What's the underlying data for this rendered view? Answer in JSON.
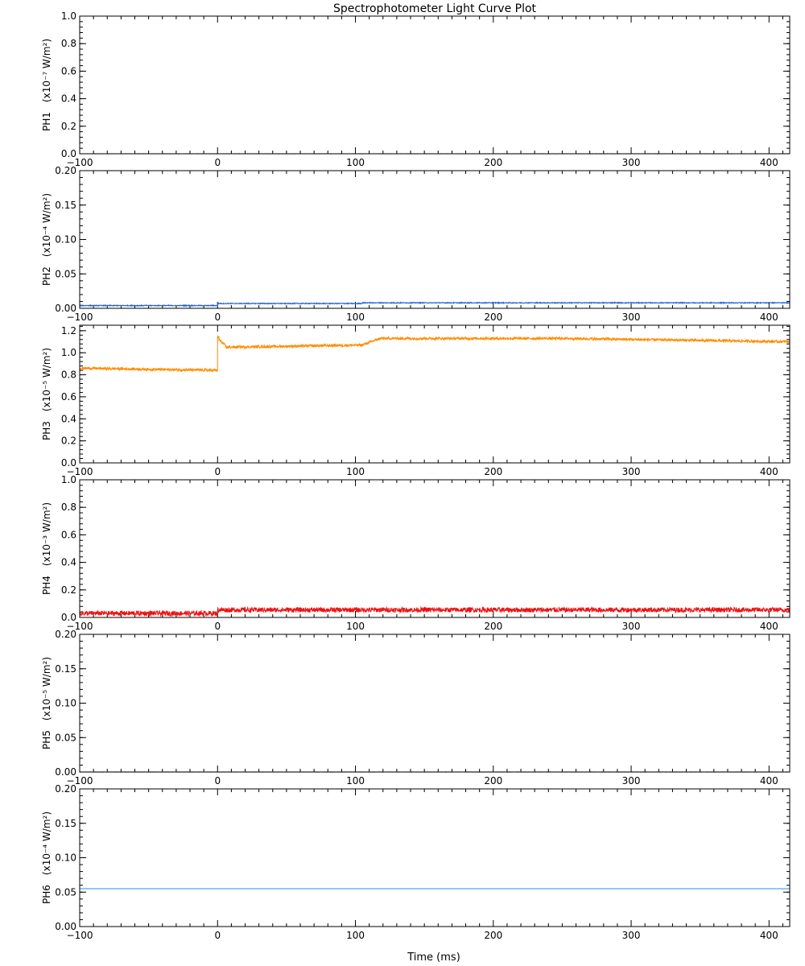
{
  "chart_data": {
    "type": "line",
    "title": "Spectrophotometer Light Curve Plot",
    "xlabel": "Time (ms)",
    "xlim": [
      -100,
      415
    ],
    "xticks": [
      -100,
      0,
      100,
      200,
      300,
      400
    ],
    "xtick_labels": [
      "−100",
      "0",
      "100",
      "200",
      "300",
      "400"
    ],
    "panels": [
      {
        "channel": "PH1",
        "unit_label": "(x10⁻⁷ W/m²)",
        "ylim": [
          0,
          1.0
        ],
        "yticks": [
          0.0,
          0.2,
          0.4,
          0.6,
          0.8,
          1.0
        ],
        "ytick_labels": [
          "0.0",
          "0.2",
          "0.4",
          "0.6",
          "0.8",
          "1.0"
        ],
        "color": "#8b008b",
        "noise": 0.0005,
        "segments": [
          {
            "x0": -100,
            "x1": 415,
            "y0": 0.0,
            "y1": 0.0
          }
        ]
      },
      {
        "channel": "PH2",
        "unit_label": "(x10⁻⁴ W/m²)",
        "ylim": [
          0,
          0.2
        ],
        "yticks": [
          0.0,
          0.05,
          0.1,
          0.15,
          0.2
        ],
        "ytick_labels": [
          "0.00",
          "0.05",
          "0.10",
          "0.15",
          "0.20"
        ],
        "color": "#1f5fd6",
        "noise": 0.0006,
        "segments": [
          {
            "x0": -100,
            "x1": 0,
            "y0": 0.004,
            "y1": 0.004
          },
          {
            "x0": 0,
            "x1": 105,
            "y0": 0.007,
            "y1": 0.007
          },
          {
            "x0": 105,
            "x1": 415,
            "y0": 0.008,
            "y1": 0.008
          }
        ]
      },
      {
        "channel": "PH3",
        "unit_label": "(x10⁻⁵ W/m²)",
        "ylim": [
          0,
          1.25
        ],
        "yticks": [
          0.0,
          0.2,
          0.4,
          0.6,
          0.8,
          1.0,
          1.2
        ],
        "ytick_labels": [
          "0.0",
          "0.2",
          "0.4",
          "0.6",
          "0.8",
          "1.0",
          "1.2"
        ],
        "color": "#ff8c00",
        "noise": 0.012,
        "segments": [
          {
            "x0": -100,
            "x1": 0,
            "y0": 0.86,
            "y1": 0.84
          },
          {
            "x0": 0,
            "x1": 1,
            "y0": 1.14,
            "y1": 1.14
          },
          {
            "x0": 1,
            "x1": 6,
            "y0": 1.12,
            "y1": 1.06
          },
          {
            "x0": 6,
            "x1": 105,
            "y0": 1.05,
            "y1": 1.07
          },
          {
            "x0": 105,
            "x1": 118,
            "y0": 1.07,
            "y1": 1.13
          },
          {
            "x0": 118,
            "x1": 250,
            "y0": 1.13,
            "y1": 1.13
          },
          {
            "x0": 250,
            "x1": 415,
            "y0": 1.13,
            "y1": 1.1
          }
        ]
      },
      {
        "channel": "PH4",
        "unit_label": "(x10⁻³ W/m²)",
        "ylim": [
          0,
          1.0
        ],
        "yticks": [
          0.0,
          0.2,
          0.4,
          0.6,
          0.8,
          1.0
        ],
        "ytick_labels": [
          "0.0",
          "0.2",
          "0.4",
          "0.6",
          "0.8",
          "1.0"
        ],
        "color": "#ee1111",
        "noise": 0.018,
        "segments": [
          {
            "x0": -100,
            "x1": 0,
            "y0": 0.03,
            "y1": 0.03
          },
          {
            "x0": 0,
            "x1": 415,
            "y0": 0.055,
            "y1": 0.055
          }
        ]
      },
      {
        "channel": "PH5",
        "unit_label": "(x10⁻⁵ W/m²)",
        "ylim": [
          0,
          0.2
        ],
        "yticks": [
          0.0,
          0.05,
          0.1,
          0.15,
          0.2
        ],
        "ytick_labels": [
          "0.00",
          "0.05",
          "0.10",
          "0.15",
          "0.20"
        ],
        "color": "#2e8b57",
        "noise": 0.0002,
        "segments": [
          {
            "x0": -100,
            "x1": 415,
            "y0": 0.0,
            "y1": 0.0
          }
        ]
      },
      {
        "channel": "PH6",
        "unit_label": "(x10⁻⁴ W/m²)",
        "ylim": [
          0,
          0.2
        ],
        "yticks": [
          0.0,
          0.05,
          0.1,
          0.15,
          0.2
        ],
        "ytick_labels": [
          "0.00",
          "0.05",
          "0.10",
          "0.15",
          "0.20"
        ],
        "color": "#1e90ff",
        "noise": 0.0,
        "segments": [
          {
            "x0": -100,
            "x1": 415,
            "y0": 0.055,
            "y1": 0.055
          }
        ]
      }
    ]
  }
}
